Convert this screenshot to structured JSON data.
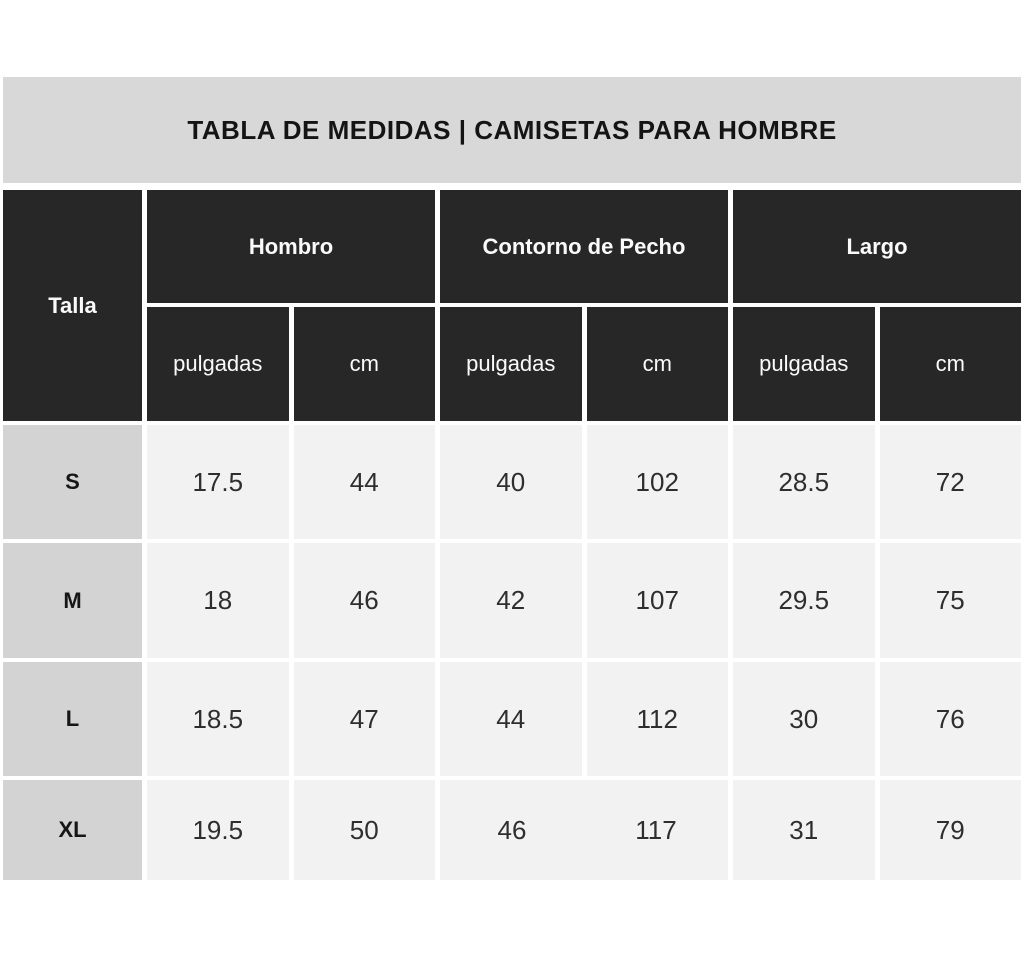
{
  "title": "TABLA DE MEDIDAS | CAMISETAS PARA HOMBRE",
  "table": {
    "size_column_label": "Talla",
    "groups": [
      {
        "label": "Hombro",
        "units": [
          "pulgadas",
          "cm"
        ]
      },
      {
        "label": "Contorno de Pecho",
        "units": [
          "pulgadas",
          "cm"
        ]
      },
      {
        "label": "Largo",
        "units": [
          "pulgadas",
          "cm"
        ]
      }
    ],
    "rows": [
      {
        "size": "S",
        "values": [
          "17.5",
          "44",
          "40",
          "102",
          "28.5",
          "72"
        ]
      },
      {
        "size": "M",
        "values": [
          "18",
          "46",
          "42",
          "107",
          "29.5",
          "75"
        ]
      },
      {
        "size": "L",
        "values": [
          "18.5",
          "47",
          "44",
          "112",
          "30",
          "76"
        ]
      },
      {
        "size": "XL",
        "values": [
          "19.5",
          "50",
          "46",
          "117",
          "31",
          "79"
        ]
      }
    ]
  },
  "colors": {
    "title-bg": "#d8d8d8",
    "header-bg": "#272727",
    "size-bg": "#d3d3d3",
    "cell-bg": "#f2f2f2"
  }
}
